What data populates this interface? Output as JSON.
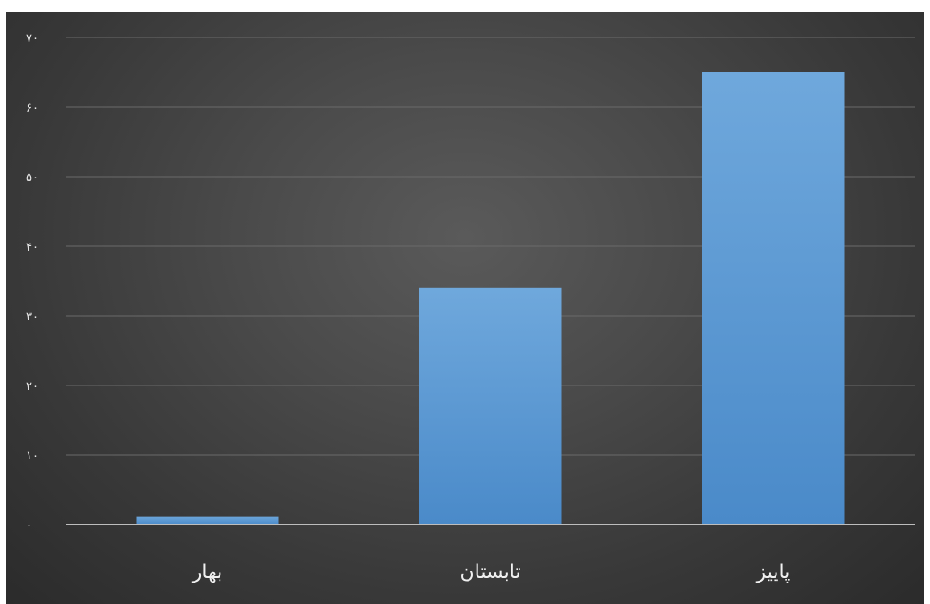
{
  "chart_data": {
    "type": "bar",
    "categories": [
      "بهار",
      "تابستان",
      "پاییز"
    ],
    "values": [
      1.2,
      34,
      65
    ],
    "ylim": [
      0,
      70
    ],
    "yticks": [
      0,
      10,
      20,
      30,
      40,
      50,
      60,
      70
    ],
    "ytick_labels": [
      "۰",
      "۱۰",
      "۲۰",
      "۳۰",
      "۴۰",
      "۵۰",
      "۶۰",
      "۷۰"
    ],
    "grid": true,
    "bar_color": "#5b9bd5",
    "bar_color_top": "#6fa8dc",
    "background_color": "#404040",
    "title": "",
    "xlabel": "",
    "ylabel": ""
  }
}
